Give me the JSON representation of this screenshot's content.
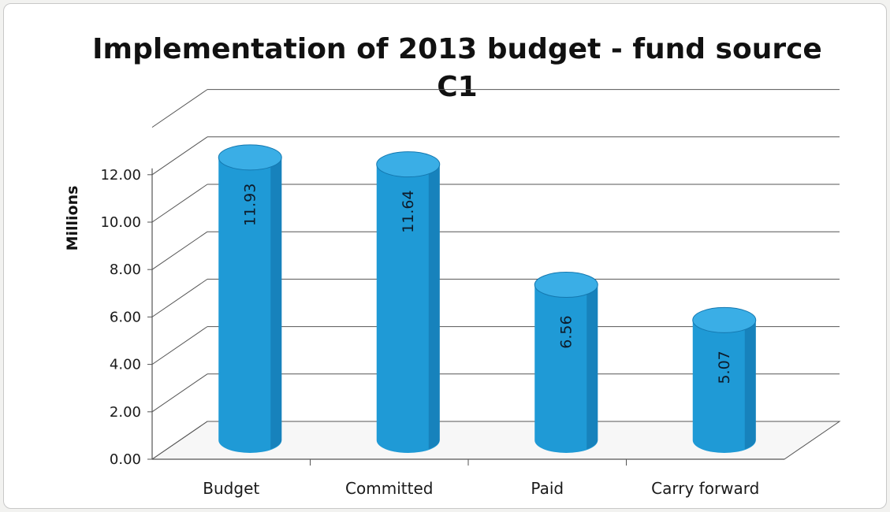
{
  "chart_data": {
    "type": "bar",
    "title": "Implementation of 2013 budget - fund source C1",
    "title_lines": [
      "Implementation of 2013 budget - fund source",
      "C1"
    ],
    "xlabel": "",
    "ylabel": "Millions",
    "categories": [
      "Budget",
      "Committed",
      "Paid",
      "Carry forward"
    ],
    "values": [
      11.93,
      11.64,
      6.56,
      5.07
    ],
    "value_labels": [
      "11.93",
      "11.64",
      "6.56",
      "5.07"
    ],
    "ylim": [
      0,
      12
    ],
    "yticks": [
      "0.00",
      "2.00",
      "4.00",
      "6.00",
      "8.00",
      "10.00",
      "12.00"
    ],
    "grid": true,
    "style": "3d-cylinder",
    "bar_color": "#1f9ad6",
    "bar_top_color": "#3aaee6",
    "bar_shade_color": "#1478b0",
    "grid_color": "#555555"
  }
}
